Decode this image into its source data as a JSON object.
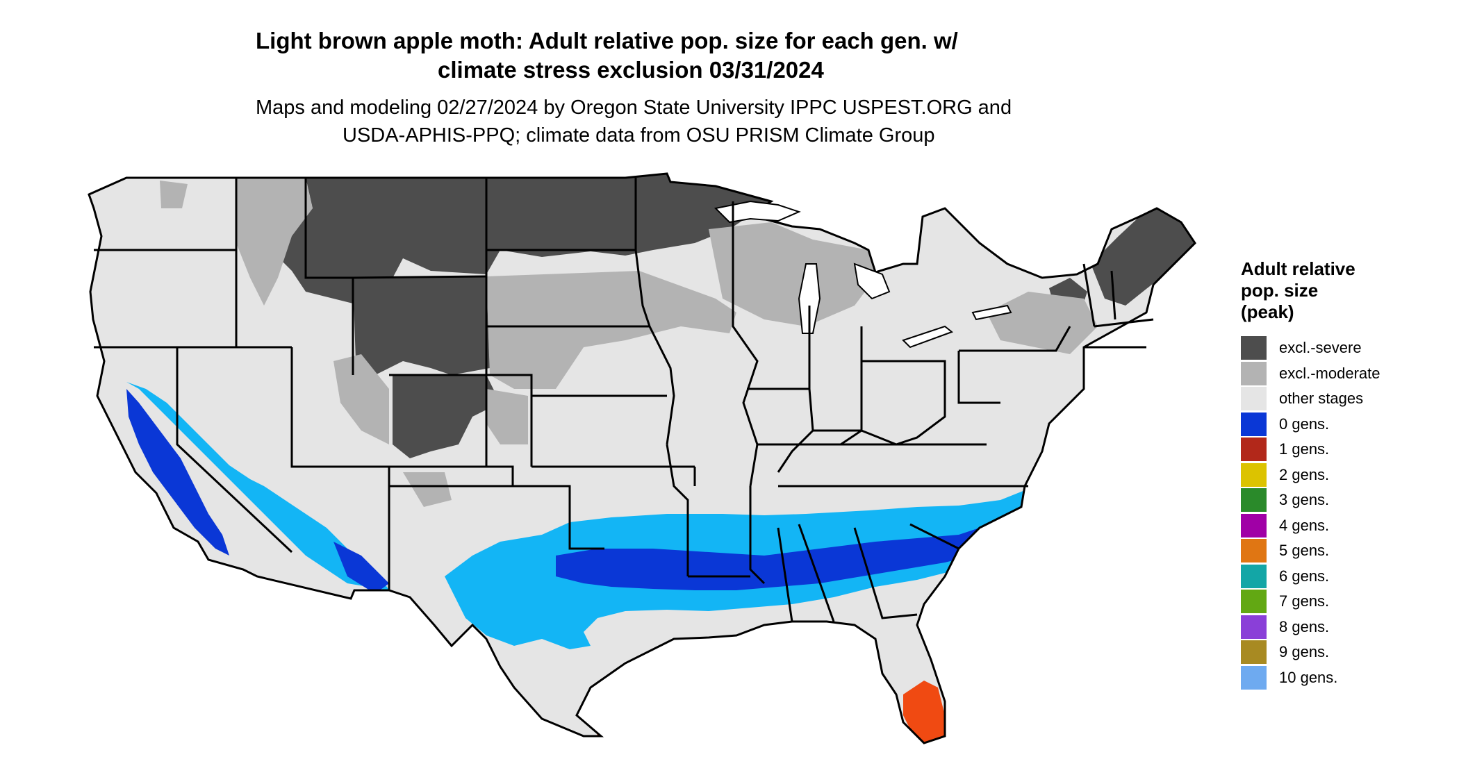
{
  "title": {
    "line1": "Light brown apple moth: Adult relative pop. size for each gen. w/",
    "line2": "climate stress exclusion 03/31/2024"
  },
  "subtitle": {
    "line1": "Maps and modeling 02/27/2024 by Oregon State University IPPC USPEST.ORG and",
    "line2": "USDA-APHIS-PPQ; climate data from OSU PRISM Climate Group"
  },
  "legend": {
    "title_lines": [
      "Adult relative",
      "pop. size",
      "(peak)"
    ],
    "items": [
      {
        "label": "excl.-severe",
        "color": "#4d4d4d"
      },
      {
        "label": "excl.-moderate",
        "color": "#b3b3b3"
      },
      {
        "label": "other stages",
        "color": "#e5e5e5"
      },
      {
        "label": "0 gens.",
        "color": "#0a37d6"
      },
      {
        "label": "1 gens.",
        "color": "#b2281a"
      },
      {
        "label": "2 gens.",
        "color": "#dcc300"
      },
      {
        "label": "3 gens.",
        "color": "#2a8a2a"
      },
      {
        "label": "4 gens.",
        "color": "#a000a6"
      },
      {
        "label": "5 gens.",
        "color": "#e07613"
      },
      {
        "label": "6 gens.",
        "color": "#13a6a6"
      },
      {
        "label": "7 gens.",
        "color": "#62a813"
      },
      {
        "label": "8 gens.",
        "color": "#8a3fd8"
      },
      {
        "label": "9 gens.",
        "color": "#a88a22"
      },
      {
        "label": "10 gens.",
        "color": "#6eaaf0"
      }
    ]
  },
  "map_colors": {
    "land": "#e5e5e5",
    "excl_severe": "#4d4d4d",
    "excl_moderate": "#b3b3b3",
    "light_blue": "#13b5f5",
    "blue": "#0a37d6",
    "orange_red": "#f04a12",
    "state_lines": "#000000"
  }
}
